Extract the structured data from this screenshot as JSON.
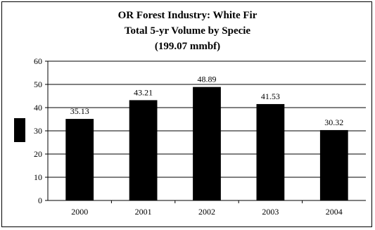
{
  "chart_data": {
    "type": "bar",
    "title_lines": [
      "OR Forest Industry: White Fir",
      "Total 5-yr Volume by Specie",
      "(199.07 mmbf)"
    ],
    "categories": [
      "2000",
      "2001",
      "2002",
      "2003",
      "2004"
    ],
    "values": [
      35.13,
      43.21,
      48.89,
      41.53,
      30.32
    ],
    "data_labels": [
      "35.13",
      "43.21",
      "48.89",
      "41.53",
      "30.32"
    ],
    "y_ticks": [
      "0",
      "10",
      "20",
      "30",
      "40",
      "50",
      "60"
    ],
    "ylim": [
      0,
      60
    ],
    "xlabel": "",
    "ylabel": "",
    "grid": true,
    "bar_color": "#000000"
  }
}
